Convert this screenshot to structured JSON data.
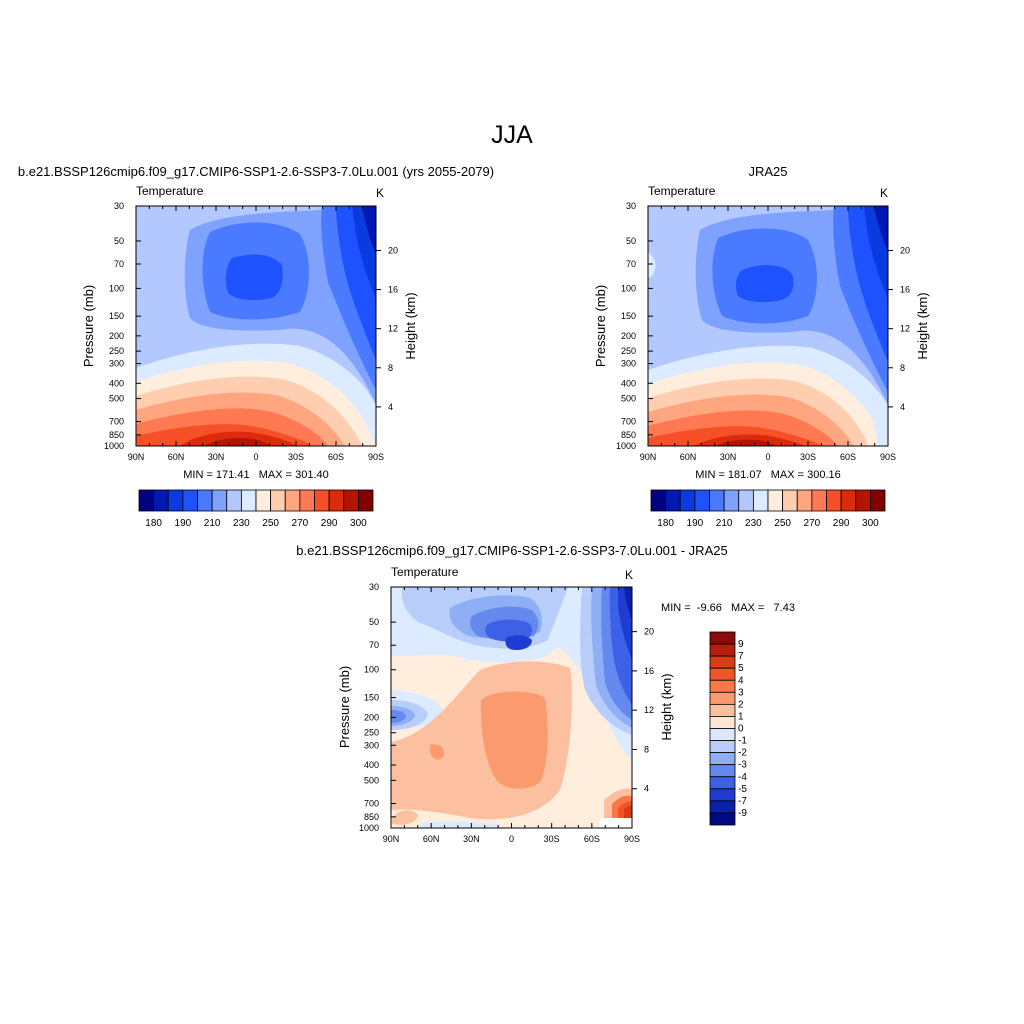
{
  "figure": {
    "title": "JJA"
  },
  "panels": [
    {
      "title": "b.e21.BSSP126cmip6.f09_g17.CMIP6-SSP1-2.6-SSP3-7.0Lu.001 (yrs 2055-2079)",
      "left_label": "Temperature",
      "right_label": "K",
      "ylabel": "Pressure (mb)",
      "ylabel_right": "Height (km)",
      "stats": "MIN = 171.41   MAX = 301.40"
    },
    {
      "title": "JRA25",
      "left_label": "Temperature",
      "right_label": "K",
      "ylabel": "Pressure (mb)",
      "ylabel_right": "Height (km)",
      "stats": "MIN = 181.07   MAX = 300.16"
    },
    {
      "title": "b.e21.BSSP126cmip6.f09_g17.CMIP6-SSP1-2.6-SSP3-7.0Lu.001 - JRA25",
      "left_label": "Temperature",
      "right_label": "K",
      "ylabel": "Pressure (mb)",
      "ylabel_right": "Height (km)",
      "stats": "MIN =  -9.66   MAX =   7.43"
    }
  ],
  "chart_data": [
    {
      "type": "heatmap",
      "title": "b.e21.BSSP126cmip6.f09_g17.CMIP6-SSP1-2.6-SSP3-7.0Lu.001 (yrs 2055-2079)",
      "variable": "Temperature",
      "units": "K",
      "x_ticks": [
        "90N",
        "60N",
        "30N",
        "0",
        "30S",
        "60S",
        "90S"
      ],
      "y_ticks": [
        30,
        50,
        70,
        100,
        150,
        200,
        250,
        300,
        400,
        500,
        700,
        850,
        1000
      ],
      "y_right_ticks": [
        20,
        16,
        12,
        8,
        4
      ],
      "ylabel": "Pressure (mb)",
      "ylabel_right": "Height (km)",
      "min": 171.41,
      "max": 301.4,
      "colorbar_labels": [
        "180",
        "190",
        "210",
        "230",
        "250",
        "270",
        "290",
        "300"
      ],
      "colorbar_colors": [
        "#000080",
        "#0019b3",
        "#0a3ae0",
        "#1f52ff",
        "#4a7aff",
        "#7fa2ff",
        "#b2c8ff",
        "#dcebff",
        "#ffeedd",
        "#ffcdb0",
        "#ffa680",
        "#ff7a52",
        "#f55028",
        "#dc2a0a",
        "#b41400",
        "#820000"
      ]
    },
    {
      "type": "heatmap",
      "title": "JRA25",
      "variable": "Temperature",
      "units": "K",
      "x_ticks": [
        "90N",
        "60N",
        "30N",
        "0",
        "30S",
        "60S",
        "90S"
      ],
      "y_ticks": [
        30,
        50,
        70,
        100,
        150,
        200,
        250,
        300,
        400,
        500,
        700,
        850,
        1000
      ],
      "y_right_ticks": [
        20,
        16,
        12,
        8,
        4
      ],
      "ylabel": "Pressure (mb)",
      "ylabel_right": "Height (km)",
      "min": 181.07,
      "max": 300.16,
      "colorbar_labels": [
        "180",
        "190",
        "210",
        "230",
        "250",
        "270",
        "290",
        "300"
      ],
      "colorbar_colors": [
        "#000080",
        "#0019b3",
        "#0a3ae0",
        "#1f52ff",
        "#4a7aff",
        "#7fa2ff",
        "#b2c8ff",
        "#dcebff",
        "#ffeedd",
        "#ffcdb0",
        "#ffa680",
        "#ff7a52",
        "#f55028",
        "#dc2a0a",
        "#b41400",
        "#820000"
      ]
    },
    {
      "type": "heatmap",
      "title": "b.e21.BSSP126cmip6.f09_g17.CMIP6-SSP1-2.6-SSP3-7.0Lu.001 - JRA25",
      "variable": "Temperature",
      "units": "K",
      "x_ticks": [
        "90N",
        "60N",
        "30N",
        "0",
        "30S",
        "60S",
        "90S"
      ],
      "y_ticks": [
        30,
        50,
        70,
        100,
        150,
        200,
        250,
        300,
        400,
        500,
        700,
        850,
        1000
      ],
      "y_right_ticks": [
        20,
        16,
        12,
        8,
        4
      ],
      "ylabel": "Pressure (mb)",
      "ylabel_right": "Height (km)",
      "min": -9.66,
      "max": 7.43,
      "colorbar_labels": [
        "9",
        "7",
        "5",
        "4",
        "3",
        "2",
        "1",
        "0",
        "-1",
        "-2",
        "-3",
        "-4",
        "-5",
        "-7",
        "-9"
      ],
      "colorbar_colors": [
        "#8b0a0a",
        "#b41e0a",
        "#d73c14",
        "#f05528",
        "#fa7846",
        "#fb9a6e",
        "#fcc0a0",
        "#fee6d2",
        "#dce8ff",
        "#b8cdfa",
        "#8eaef5",
        "#6488ee",
        "#3c60e6",
        "#1e3cd2",
        "#0a22aa",
        "#000a80"
      ]
    }
  ]
}
